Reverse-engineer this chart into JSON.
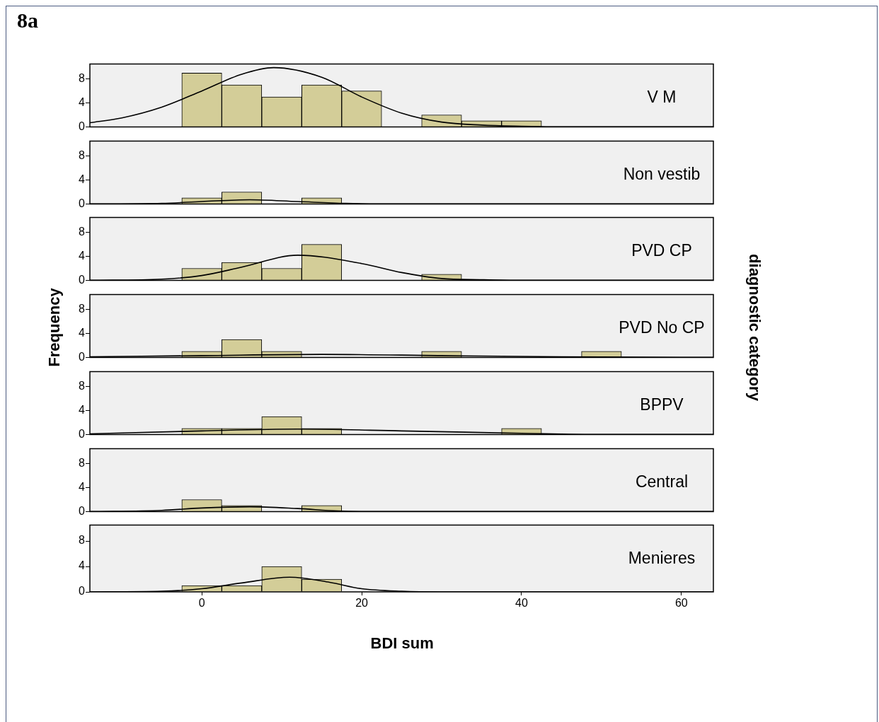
{
  "chart_data": [
    {
      "type": "histogram",
      "title": "8a",
      "annotations": [
        "V M"
      ],
      "bins": [
        -2.5,
        2.5,
        7.5,
        12.5,
        17.5,
        22.5,
        27.5,
        32.5,
        37.5,
        42.5,
        47.5,
        52.5
      ],
      "xlim": [
        -14,
        64
      ],
      "xticks": [
        0,
        20,
        40,
        60
      ],
      "ylim": [
        0,
        10.5
      ],
      "yticks": [
        0,
        4,
        8
      ],
      "tick_labels": "y",
      "grid": false,
      "legend": false,
      "series": [
        {
          "type": "histogram",
          "color": "#d3cd98",
          "values": [
            9,
            7,
            5,
            7,
            6,
            0,
            2,
            1,
            1,
            0,
            0
          ]
        },
        {
          "type": "line",
          "color": "#000000",
          "x": [
            -14,
            -10,
            -5,
            0,
            5,
            9,
            15,
            20,
            25,
            30,
            35,
            40,
            45,
            64
          ],
          "values": [
            0.7,
            1.5,
            3.3,
            6.0,
            8.8,
            9.9,
            8.3,
            5.0,
            2.3,
            0.8,
            0.3,
            0.1,
            0,
            0
          ]
        }
      ]
    },
    {
      "type": "histogram",
      "annotations": [
        "Non vestib"
      ],
      "bins": [
        -2.5,
        2.5,
        7.5,
        12.5,
        17.5,
        22.5,
        27.5,
        32.5,
        37.5,
        42.5,
        47.5,
        52.5
      ],
      "xlim": [
        -14,
        64
      ],
      "xticks": [
        0,
        20,
        40,
        60
      ],
      "ylim": [
        0,
        10.5
      ],
      "yticks": [
        0,
        4,
        8
      ],
      "tick_labels": "y",
      "grid": false,
      "legend": false,
      "series": [
        {
          "type": "histogram",
          "color": "#d3cd98",
          "values": [
            1,
            2,
            0,
            1,
            0,
            0,
            0,
            0,
            0,
            0,
            0
          ]
        },
        {
          "type": "line",
          "color": "#000000",
          "x": [
            -14,
            -5,
            0,
            6,
            12,
            18,
            25,
            64
          ],
          "values": [
            0,
            0.1,
            0.4,
            0.7,
            0.4,
            0.1,
            0,
            0
          ]
        }
      ]
    },
    {
      "type": "histogram",
      "annotations": [
        "PVD CP"
      ],
      "bins": [
        -2.5,
        2.5,
        7.5,
        12.5,
        17.5,
        22.5,
        27.5,
        32.5,
        37.5,
        42.5,
        47.5,
        52.5
      ],
      "xlim": [
        -14,
        64
      ],
      "xticks": [
        0,
        20,
        40,
        60
      ],
      "ylim": [
        0,
        10.5
      ],
      "yticks": [
        0,
        4,
        8
      ],
      "tick_labels": "y",
      "grid": false,
      "legend": false,
      "series": [
        {
          "type": "histogram",
          "color": "#d3cd98",
          "values": [
            2,
            3,
            2,
            6,
            0,
            0,
            1,
            0,
            0,
            0,
            0
          ]
        },
        {
          "type": "line",
          "color": "#000000",
          "x": [
            -14,
            -5,
            0,
            5,
            12,
            20,
            25,
            30,
            35,
            40,
            64
          ],
          "values": [
            0,
            0.2,
            0.8,
            2.2,
            4.2,
            2.8,
            1.3,
            0.3,
            0.1,
            0,
            0
          ]
        }
      ]
    },
    {
      "type": "histogram",
      "annotations": [
        "PVD No CP"
      ],
      "ylabel": "Frequency",
      "y2label": "diagnostic category",
      "bins": [
        -2.5,
        2.5,
        7.5,
        12.5,
        17.5,
        22.5,
        27.5,
        32.5,
        37.5,
        42.5,
        47.5,
        52.5
      ],
      "xlim": [
        -14,
        64
      ],
      "xticks": [
        0,
        20,
        40,
        60
      ],
      "ylim": [
        0,
        10.5
      ],
      "yticks": [
        0,
        4,
        8
      ],
      "tick_labels": "y",
      "grid": false,
      "legend": false,
      "series": [
        {
          "type": "histogram",
          "color": "#d3cd98",
          "values": [
            1,
            3,
            1,
            0,
            0,
            0,
            1,
            0,
            0,
            0,
            1
          ]
        },
        {
          "type": "line",
          "color": "#000000",
          "x": [
            -14,
            0,
            15,
            30,
            45,
            64
          ],
          "values": [
            0.1,
            0.3,
            0.5,
            0.3,
            0.1,
            0
          ]
        }
      ]
    },
    {
      "type": "histogram",
      "annotations": [
        "BPPV"
      ],
      "bins": [
        -2.5,
        2.5,
        7.5,
        12.5,
        17.5,
        22.5,
        27.5,
        32.5,
        37.5,
        42.5,
        47.5,
        52.5
      ],
      "xlim": [
        -14,
        64
      ],
      "xticks": [
        0,
        20,
        40,
        60
      ],
      "ylim": [
        0,
        10.5
      ],
      "yticks": [
        0,
        4,
        8
      ],
      "tick_labels": "y",
      "grid": false,
      "legend": false,
      "series": [
        {
          "type": "histogram",
          "color": "#d3cd98",
          "values": [
            1,
            1,
            3,
            1,
            0,
            0,
            0,
            0,
            1,
            0,
            0
          ]
        },
        {
          "type": "line",
          "color": "#000000",
          "x": [
            -14,
            0,
            12,
            25,
            40,
            50,
            64
          ],
          "values": [
            0.1,
            0.6,
            0.9,
            0.6,
            0.2,
            0,
            0
          ]
        }
      ]
    },
    {
      "type": "histogram",
      "annotations": [
        "Central"
      ],
      "bins": [
        -2.5,
        2.5,
        7.5,
        12.5,
        17.5,
        22.5,
        27.5,
        32.5,
        37.5,
        42.5,
        47.5,
        52.5
      ],
      "xlim": [
        -14,
        64
      ],
      "xticks": [
        0,
        20,
        40,
        60
      ],
      "ylim": [
        0,
        10.5
      ],
      "yticks": [
        0,
        4,
        8
      ],
      "tick_labels": "y",
      "grid": false,
      "legend": false,
      "series": [
        {
          "type": "histogram",
          "color": "#d3cd98",
          "values": [
            2,
            1,
            0,
            1,
            0,
            0,
            0,
            0,
            0,
            0,
            0
          ]
        },
        {
          "type": "line",
          "color": "#000000",
          "x": [
            -14,
            -5,
            0,
            6,
            12,
            17,
            22,
            64
          ],
          "values": [
            0,
            0.2,
            0.6,
            0.8,
            0.5,
            0.1,
            0,
            0
          ]
        }
      ]
    },
    {
      "type": "histogram",
      "annotations": [
        "Menieres"
      ],
      "xlabel": "BDI sum",
      "bins": [
        -2.5,
        2.5,
        7.5,
        12.5,
        17.5,
        22.5,
        27.5,
        32.5,
        37.5,
        42.5,
        47.5,
        52.5
      ],
      "xlim": [
        -14,
        64
      ],
      "xticks": [
        0,
        20,
        40,
        60
      ],
      "ylim": [
        0,
        10.5
      ],
      "yticks": [
        0,
        4,
        8
      ],
      "grid": false,
      "legend": false,
      "series": [
        {
          "type": "histogram",
          "color": "#d3cd98",
          "values": [
            1,
            1,
            4,
            2,
            0,
            0,
            0,
            0,
            0,
            0,
            0
          ]
        },
        {
          "type": "line",
          "color": "#000000",
          "x": [
            -14,
            -5,
            0,
            5,
            11,
            16,
            20,
            25,
            30,
            64
          ],
          "values": [
            0,
            0.1,
            0.5,
            1.4,
            2.3,
            1.5,
            0.5,
            0.1,
            0,
            0
          ]
        }
      ]
    }
  ]
}
